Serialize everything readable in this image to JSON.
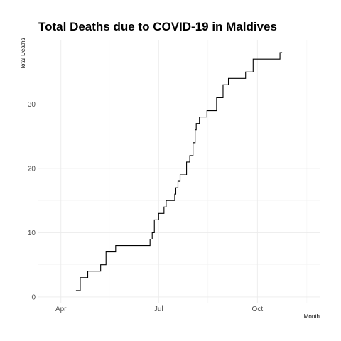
{
  "chart_data": {
    "type": "line",
    "title": "Total Deaths due to COVID-19 in Maldives",
    "xlabel": "Month",
    "ylabel": "Total Deaths",
    "x_major_ticks": [
      {
        "date": "2020-04-01",
        "label": "Apr"
      },
      {
        "date": "2020-07-01",
        "label": "Jul"
      },
      {
        "date": "2020-10-01",
        "label": "Oct"
      }
    ],
    "x_minor_ticks": [
      "2020-05-16",
      "2020-08-16",
      "2020-11-16"
    ],
    "xlim": [
      "2020-03-11",
      "2020-11-28"
    ],
    "y_major_ticks": [
      0,
      10,
      20,
      30
    ],
    "y_minor_ticks": [
      5,
      15,
      25,
      35
    ],
    "ylim": [
      -1,
      40
    ],
    "grid": true,
    "line_color": "#000000",
    "series": [
      {
        "x": [
          "2020-04-15",
          "2020-04-19",
          "2020-04-21",
          "2020-04-26",
          "2020-05-08",
          "2020-05-13",
          "2020-05-17",
          "2020-05-22",
          "2020-06-22",
          "2020-06-23",
          "2020-06-25",
          "2020-06-27",
          "2020-07-01",
          "2020-07-06",
          "2020-07-08",
          "2020-07-16",
          "2020-07-17",
          "2020-07-19",
          "2020-07-21",
          "2020-07-27",
          "2020-07-30",
          "2020-07-31",
          "2020-08-02",
          "2020-08-04",
          "2020-08-05",
          "2020-08-08",
          "2020-08-11",
          "2020-08-15",
          "2020-08-18",
          "2020-08-24",
          "2020-08-30",
          "2020-09-04",
          "2020-09-16",
          "2020-09-20",
          "2020-09-27",
          "2020-10-06",
          "2020-10-13",
          "2020-10-22",
          "2020-10-24"
        ],
        "values": [
          1,
          3,
          3,
          4,
          5,
          7,
          7,
          8,
          8,
          9,
          10,
          12,
          13,
          14,
          15,
          16,
          17,
          18,
          19,
          21,
          22,
          22,
          24,
          26,
          27,
          28,
          28,
          29,
          29,
          31,
          33,
          34,
          34,
          35,
          37,
          37,
          37,
          38,
          38
        ]
      }
    ]
  }
}
